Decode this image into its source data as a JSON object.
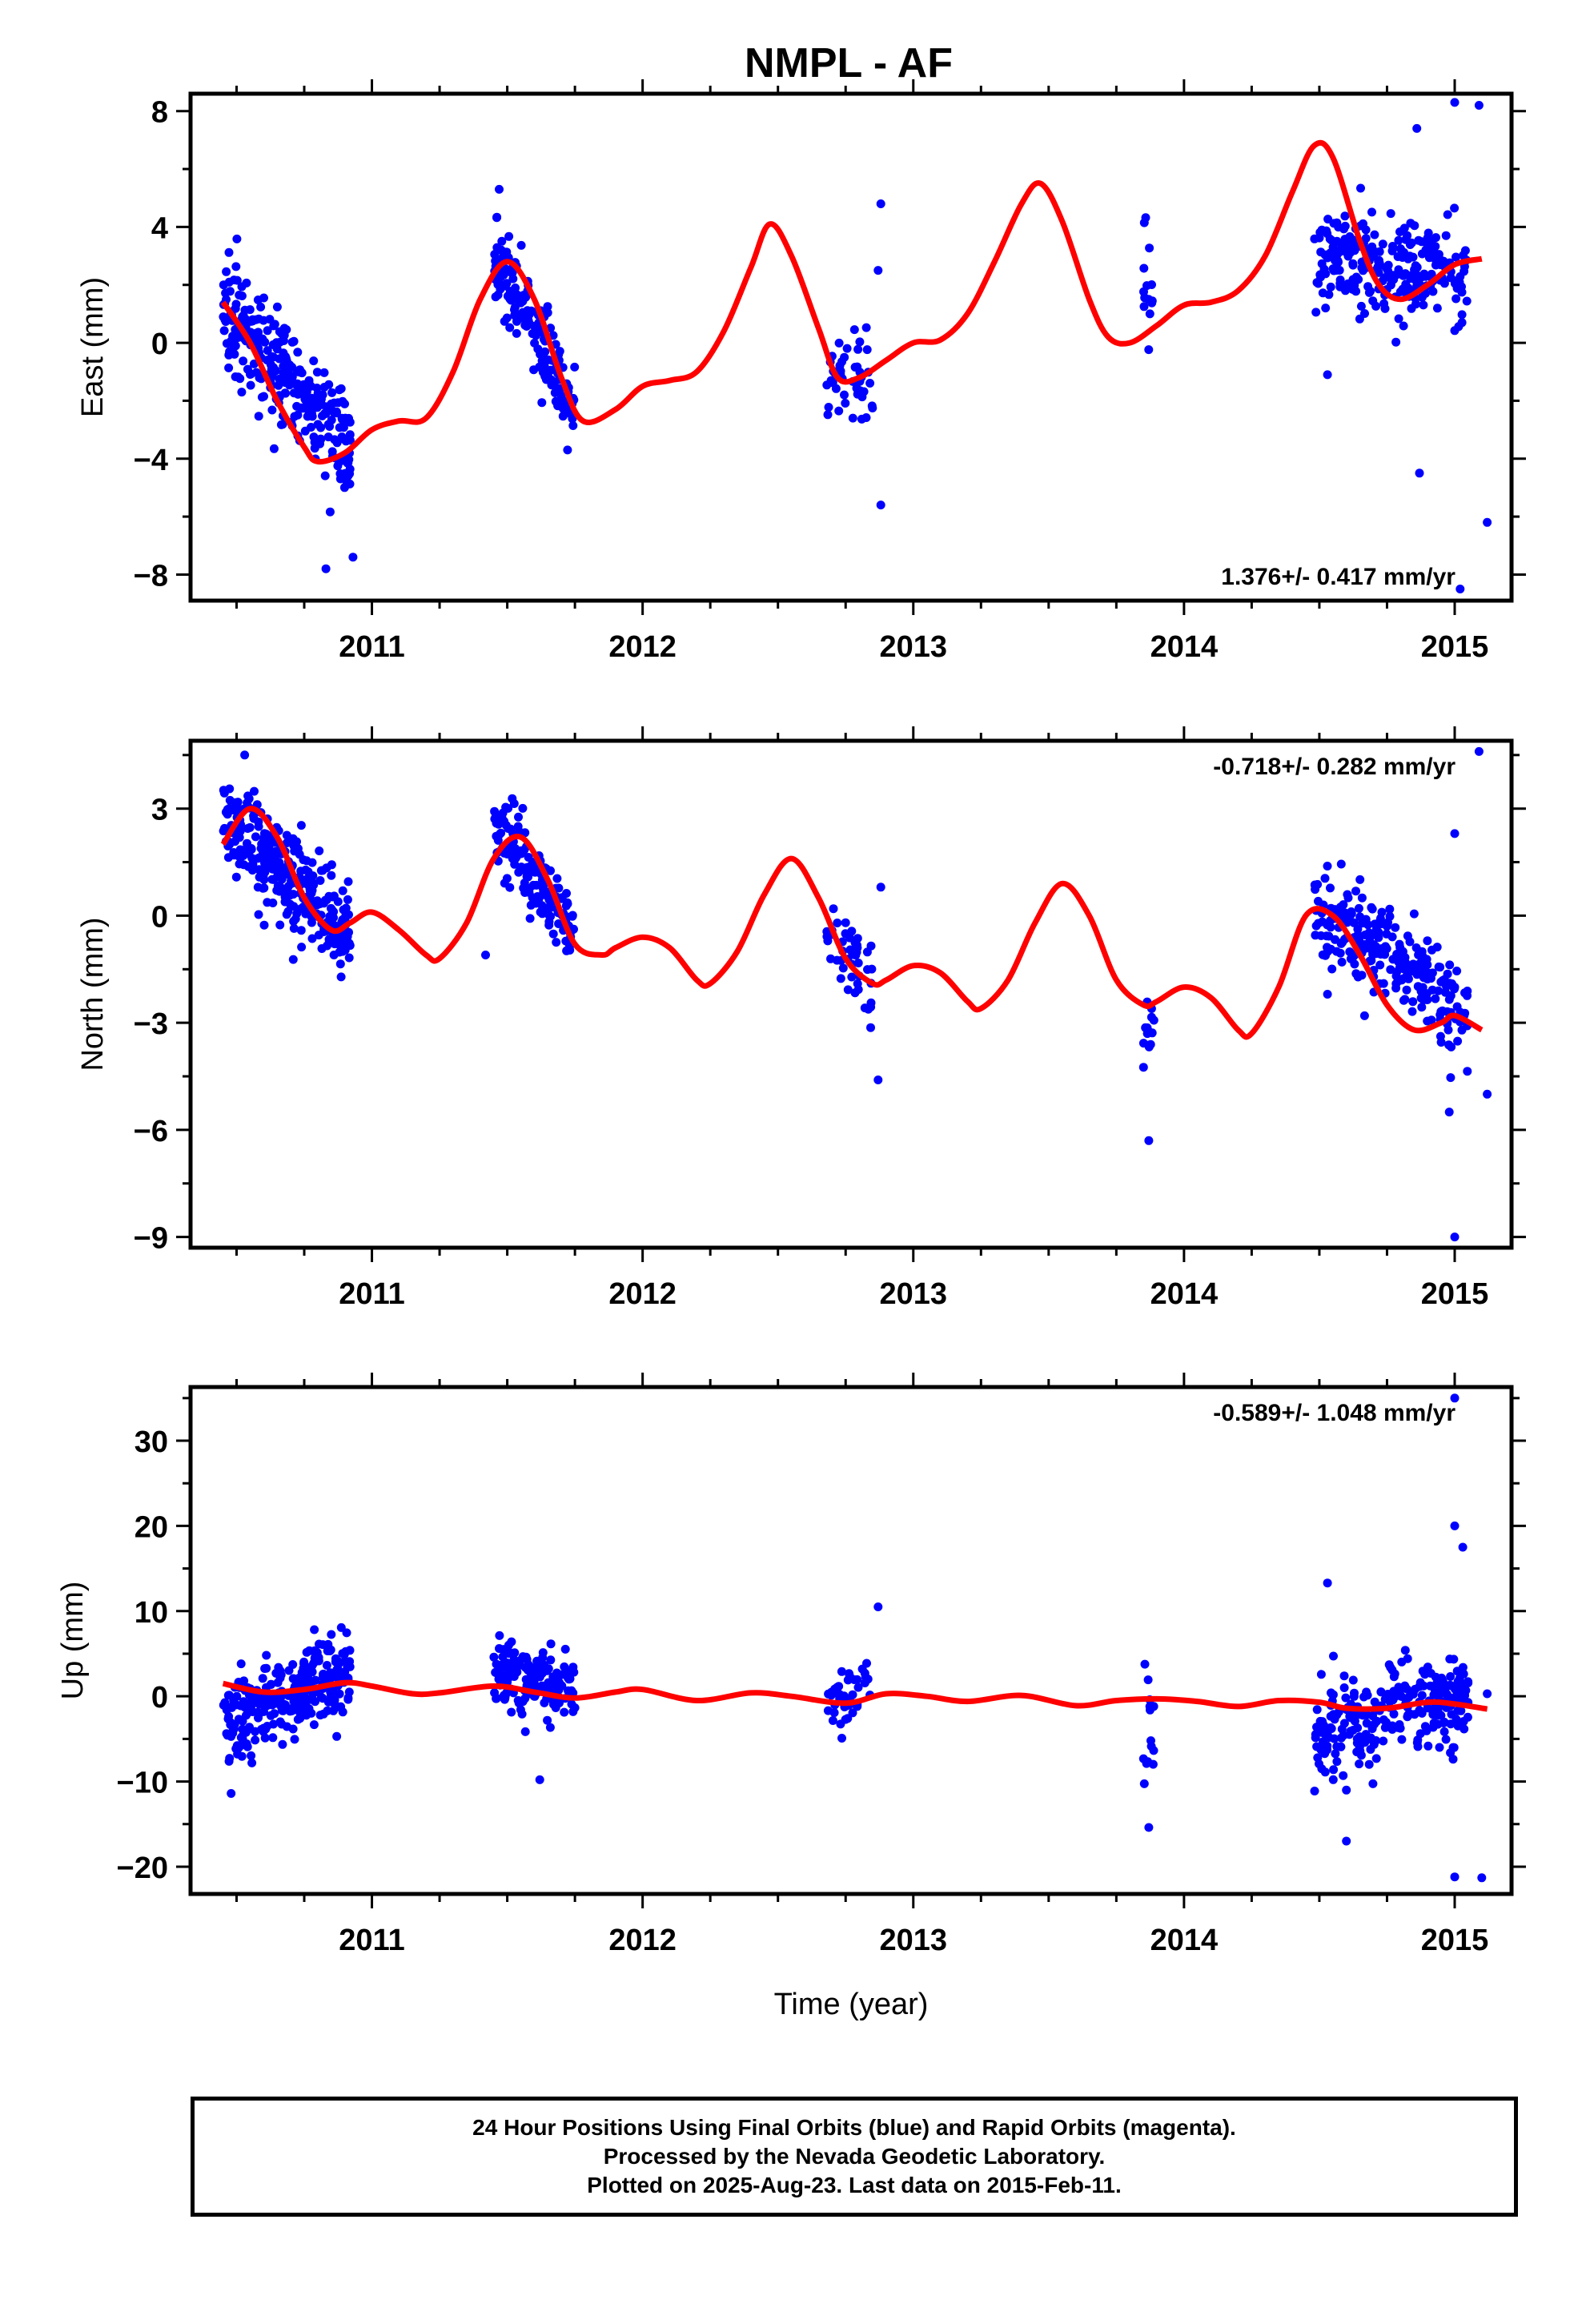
{
  "title": "NMPL - AF",
  "colors": {
    "data": "#0000ff",
    "fit": "#ff0000",
    "axis": "#000000"
  },
  "footer": {
    "line1": "24 Hour Positions Using Final Orbits (blue) and Rapid Orbits (magenta).",
    "line2": "Processed by the Nevada Geodetic Laboratory.",
    "line3": "Plotted on 2025-Aug-23. Last data on 2015-Feb-11."
  },
  "chart_data": [
    {
      "type": "scatter",
      "ylabel": "East (mm)",
      "xlabel": "",
      "xlim": [
        2010.33,
        2015.21
      ],
      "ylim": [
        -8.9,
        8.6
      ],
      "xticks": [
        2011,
        2012,
        2013,
        2014,
        2015
      ],
      "yticks": [
        8,
        4,
        0,
        -4,
        -8
      ],
      "ytick_labels": [
        "8",
        "4",
        "0",
        "−4",
        "−8"
      ],
      "annotation": "1.376+/- 0.417 mm/yr",
      "annotation_position": "bottom-right",
      "series": [
        {
          "role": "data",
          "segments": [
            {
              "x": [
                2010.45,
                2010.92
              ],
              "y": [
                1.2,
                -3.5
              ],
              "spread": 1.6,
              "n": 300
            },
            {
              "x": [
                2011.45,
                2011.75
              ],
              "y": [
                3.0,
                -2.2
              ],
              "spread": 1.3,
              "n": 160
            },
            {
              "x": [
                2012.68,
                2012.85
              ],
              "y": [
                -0.8,
                -1.6
              ],
              "spread": 1.5,
              "n": 45
            },
            {
              "x": [
                2013.85,
                2013.89
              ],
              "y": [
                1.5,
                1.5
              ],
              "spread": 2.0,
              "n": 14
            },
            {
              "x": [
                2014.48,
                2015.05
              ],
              "y": [
                3.0,
                2.2
              ],
              "spread": 1.6,
              "n": 260
            }
          ],
          "outliers": [
            {
              "x": 2012.88,
              "y": 4.8
            },
            {
              "x": 2012.88,
              "y": -5.6
            },
            {
              "x": 2012.87,
              "y": 2.5
            },
            {
              "x": 2014.87,
              "y": -4.5
            },
            {
              "x": 2014.86,
              "y": 7.4
            },
            {
              "x": 2015.0,
              "y": 8.3
            },
            {
              "x": 2015.09,
              "y": 8.2
            },
            {
              "x": 2015.12,
              "y": -6.2
            },
            {
              "x": 2015.02,
              "y": -8.5
            },
            {
              "x": 2014.53,
              "y": -1.1
            },
            {
              "x": 2011.47,
              "y": 5.3
            },
            {
              "x": 2010.83,
              "y": -7.8
            },
            {
              "x": 2010.93,
              "y": -7.4
            }
          ]
        },
        {
          "role": "fit",
          "x": [
            2010.45,
            2010.55,
            2010.65,
            2010.75,
            2010.8,
            2010.9,
            2011.0,
            2011.1,
            2011.2,
            2011.3,
            2011.4,
            2011.5,
            2011.6,
            2011.7,
            2011.78,
            2011.9,
            2012.0,
            2012.1,
            2012.2,
            2012.3,
            2012.4,
            2012.47,
            2012.55,
            2012.65,
            2012.72,
            2012.8,
            2012.9,
            2013.0,
            2013.1,
            2013.2,
            2013.3,
            2013.4,
            2013.47,
            2013.55,
            2013.65,
            2013.72,
            2013.8,
            2013.9,
            2014.0,
            2014.1,
            2014.2,
            2014.3,
            2014.4,
            2014.48,
            2014.55,
            2014.65,
            2014.72,
            2014.8,
            2014.9,
            2015.0,
            2015.1
          ],
          "y": [
            1.4,
            0.0,
            -2.0,
            -3.6,
            -4.1,
            -3.8,
            -3.0,
            -2.7,
            -2.6,
            -1.0,
            1.5,
            2.8,
            1.5,
            -1.2,
            -2.7,
            -2.3,
            -1.5,
            -1.3,
            -1.0,
            0.4,
            2.6,
            4.1,
            3.0,
            0.5,
            -1.2,
            -1.2,
            -0.6,
            0.0,
            0.1,
            1.0,
            2.8,
            4.8,
            5.5,
            4.2,
            1.5,
            0.2,
            0.0,
            0.6,
            1.3,
            1.4,
            1.8,
            3.0,
            5.2,
            6.8,
            6.4,
            3.5,
            2.0,
            1.5,
            2.0,
            2.7,
            2.9
          ]
        }
      ]
    },
    {
      "type": "scatter",
      "ylabel": "North (mm)",
      "xlabel": "",
      "xlim": [
        2010.33,
        2015.21
      ],
      "ylim": [
        -9.3,
        4.9
      ],
      "xticks": [
        2011,
        2012,
        2013,
        2014,
        2015
      ],
      "yticks": [
        3,
        0,
        -3,
        -6,
        -9
      ],
      "ytick_labels": [
        "3",
        "0",
        "−3",
        "−6",
        "−9"
      ],
      "annotation": "-0.718+/- 0.282 mm/yr",
      "annotation_position": "top-right",
      "series": [
        {
          "role": "data",
          "segments": [
            {
              "x": [
                2010.45,
                2010.92
              ],
              "y": [
                2.8,
                -0.6
              ],
              "spread": 1.3,
              "n": 300
            },
            {
              "x": [
                2011.45,
                2011.75
              ],
              "y": [
                2.6,
                -0.4
              ],
              "spread": 1.0,
              "n": 160
            },
            {
              "x": [
                2012.68,
                2012.85
              ],
              "y": [
                -0.5,
                -2.0
              ],
              "spread": 1.2,
              "n": 45
            },
            {
              "x": [
                2013.85,
                2013.89
              ],
              "y": [
                -3.2,
                -3.2
              ],
              "spread": 1.0,
              "n": 14
            },
            {
              "x": [
                2014.48,
                2015.05
              ],
              "y": [
                0.3,
                -2.8
              ],
              "spread": 1.2,
              "n": 260
            }
          ],
          "outliers": [
            {
              "x": 2010.53,
              "y": 4.5
            },
            {
              "x": 2012.87,
              "y": -4.6
            },
            {
              "x": 2012.88,
              "y": 0.8
            },
            {
              "x": 2013.87,
              "y": -6.3
            },
            {
              "x": 2015.0,
              "y": -9.0
            },
            {
              "x": 2015.09,
              "y": 4.6
            },
            {
              "x": 2015.0,
              "y": 2.3
            },
            {
              "x": 2015.12,
              "y": -5.0
            },
            {
              "x": 2014.98,
              "y": -5.5
            },
            {
              "x": 2011.42,
              "y": -1.1
            },
            {
              "x": 2014.53,
              "y": -2.2
            }
          ]
        },
        {
          "role": "fit",
          "x": [
            2010.45,
            2010.55,
            2010.65,
            2010.75,
            2010.85,
            2010.92,
            2011.0,
            2011.1,
            2011.2,
            2011.25,
            2011.35,
            2011.45,
            2011.55,
            2011.65,
            2011.75,
            2011.85,
            2011.9,
            2012.0,
            2012.1,
            2012.2,
            2012.25,
            2012.35,
            2012.45,
            2012.55,
            2012.65,
            2012.75,
            2012.85,
            2012.9,
            2013.0,
            2013.1,
            2013.2,
            2013.25,
            2013.35,
            2013.45,
            2013.55,
            2013.65,
            2013.75,
            2013.85,
            2013.9,
            2014.0,
            2014.1,
            2014.2,
            2014.25,
            2014.35,
            2014.45,
            2014.55,
            2014.65,
            2014.75,
            2014.85,
            2014.95,
            2015.0,
            2015.1
          ],
          "y": [
            2.0,
            3.0,
            2.2,
            0.5,
            -0.4,
            -0.2,
            0.1,
            -0.4,
            -1.1,
            -1.2,
            -0.2,
            1.6,
            2.2,
            1.0,
            -0.8,
            -1.1,
            -0.9,
            -0.6,
            -0.9,
            -1.8,
            -1.9,
            -1.0,
            0.6,
            1.6,
            0.5,
            -1.2,
            -1.9,
            -1.8,
            -1.4,
            -1.6,
            -2.4,
            -2.6,
            -1.8,
            -0.2,
            0.9,
            0.0,
            -1.8,
            -2.5,
            -2.4,
            -2.0,
            -2.3,
            -3.2,
            -3.3,
            -2.0,
            0.0,
            0.0,
            -1.1,
            -2.5,
            -3.2,
            -3.0,
            -2.8,
            -3.2
          ]
        }
      ]
    },
    {
      "type": "scatter",
      "ylabel": "Up (mm)",
      "xlabel": "Time (year)",
      "xlim": [
        2010.33,
        2015.21
      ],
      "ylim": [
        -23.2,
        36.3
      ],
      "xticks": [
        2011,
        2012,
        2013,
        2014,
        2015
      ],
      "yticks": [
        30,
        20,
        10,
        0,
        -10,
        -20
      ],
      "ytick_labels": [
        "30",
        "20",
        "10",
        "0",
        "−10",
        "−20"
      ],
      "annotation": "-0.589+/- 1.048 mm/yr",
      "annotation_position": "top-right",
      "series": [
        {
          "role": "data",
          "segments": [
            {
              "x": [
                2010.45,
                2010.92
              ],
              "y": [
                -3.0,
                3.0
              ],
              "spread": 4.5,
              "n": 300
            },
            {
              "x": [
                2011.45,
                2011.75
              ],
              "y": [
                3.0,
                1.0
              ],
              "spread": 3.5,
              "n": 160
            },
            {
              "x": [
                2012.68,
                2012.85
              ],
              "y": [
                -1.0,
                1.5
              ],
              "spread": 3.5,
              "n": 45
            },
            {
              "x": [
                2013.85,
                2013.89
              ],
              "y": [
                -3.0,
                -3.0
              ],
              "spread": 6.0,
              "n": 14
            },
            {
              "x": [
                2014.48,
                2015.05
              ],
              "y": [
                -4.0,
                0.0
              ],
              "spread": 5.0,
              "n": 260
            }
          ],
          "outliers": [
            {
              "x": 2015.0,
              "y": 35.0
            },
            {
              "x": 2015.0,
              "y": 20.0
            },
            {
              "x": 2015.03,
              "y": 17.5
            },
            {
              "x": 2014.53,
              "y": 13.3
            },
            {
              "x": 2015.0,
              "y": -21.2
            },
            {
              "x": 2015.1,
              "y": -21.3
            },
            {
              "x": 2013.87,
              "y": -15.4
            },
            {
              "x": 2012.87,
              "y": 10.5
            },
            {
              "x": 2014.6,
              "y": -17.0
            },
            {
              "x": 2011.62,
              "y": -9.8
            },
            {
              "x": 2010.48,
              "y": -11.4
            },
            {
              "x": 2015.12,
              "y": 0.3
            }
          ]
        },
        {
          "role": "fit",
          "x": [
            2010.45,
            2010.6,
            2010.75,
            2010.9,
            2011.0,
            2011.15,
            2011.25,
            2011.45,
            2011.6,
            2011.75,
            2011.9,
            2012.0,
            2012.2,
            2012.4,
            2012.55,
            2012.75,
            2012.9,
            2013.05,
            2013.2,
            2013.4,
            2013.6,
            2013.75,
            2013.9,
            2014.05,
            2014.2,
            2014.35,
            2014.5,
            2014.6,
            2014.75,
            2014.9,
            2015.0,
            2015.12
          ],
          "y": [
            1.5,
            0.5,
            0.8,
            1.6,
            1.2,
            0.3,
            0.4,
            1.2,
            0.5,
            -0.2,
            0.5,
            0.8,
            -0.5,
            0.4,
            0.0,
            -0.8,
            0.3,
            0.0,
            -0.6,
            0.1,
            -1.1,
            -0.5,
            -0.3,
            -0.6,
            -1.2,
            -0.5,
            -0.7,
            -1.4,
            -1.4,
            -0.7,
            -0.9,
            -1.5
          ]
        }
      ]
    }
  ]
}
